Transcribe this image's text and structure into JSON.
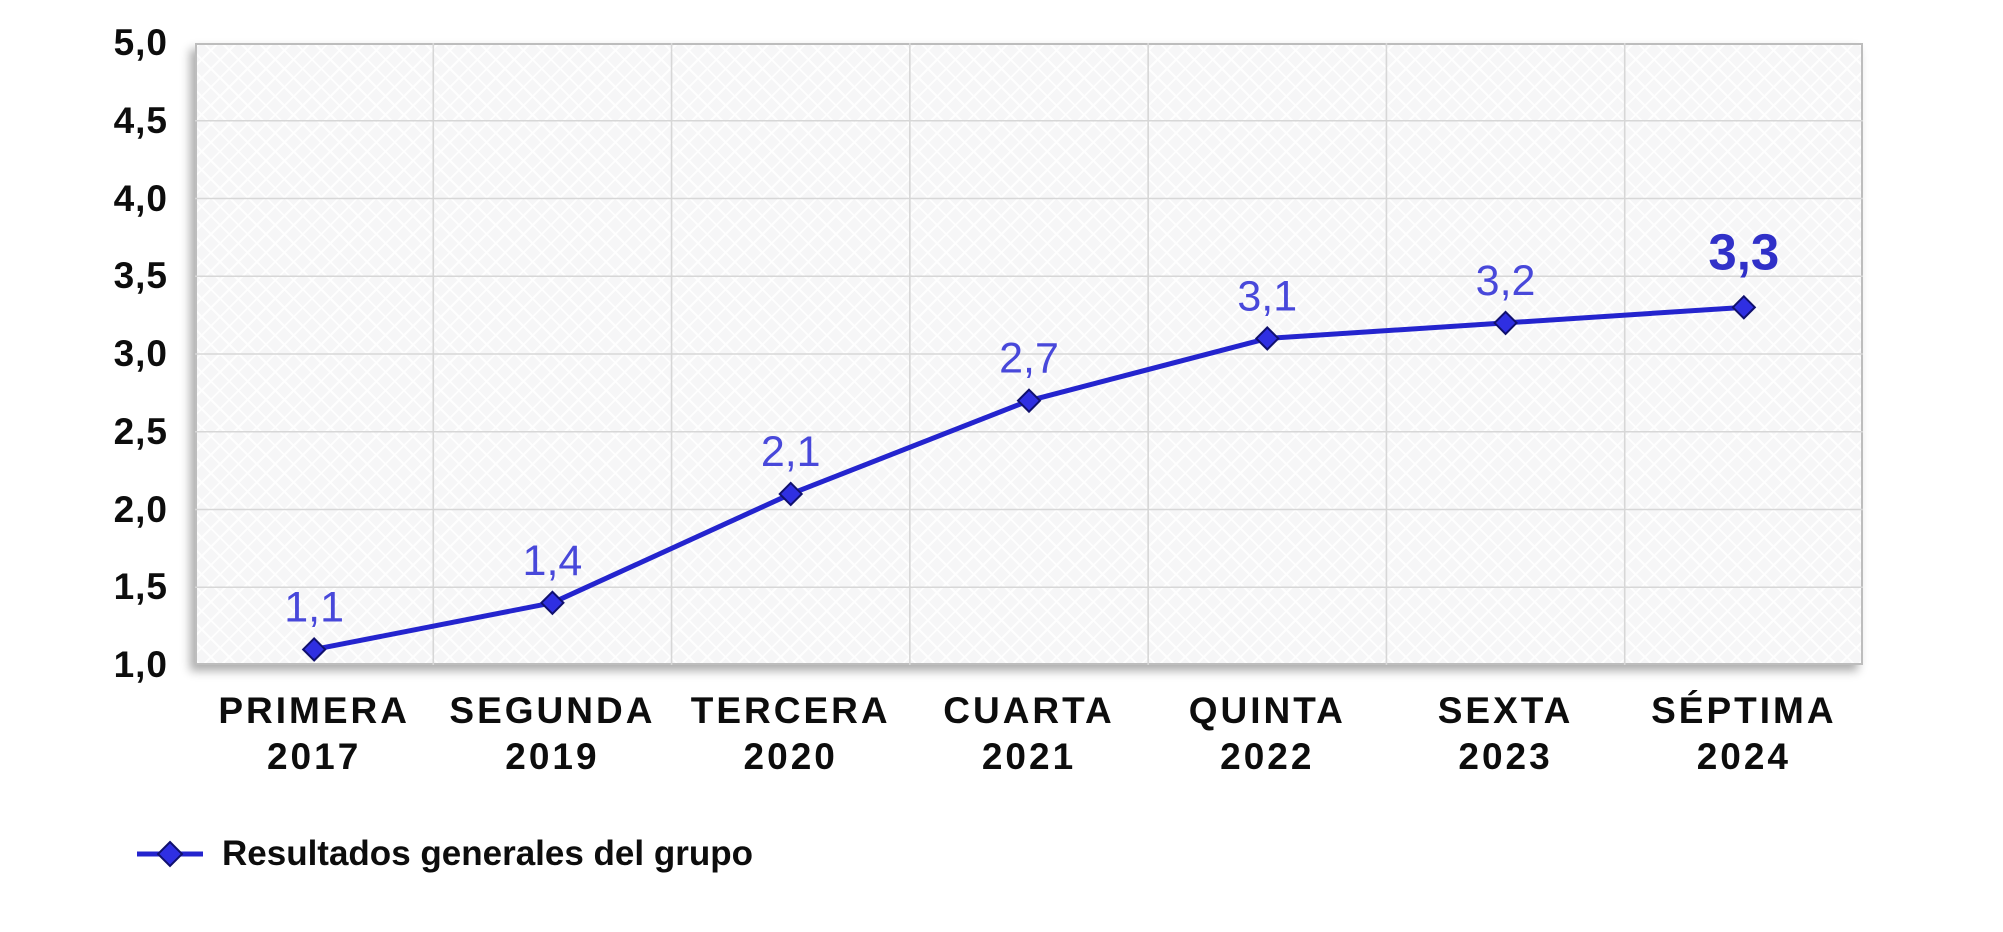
{
  "chart_data": {
    "type": "line",
    "title": "",
    "categories": [
      {
        "name": "PRIMERA",
        "year": "2017"
      },
      {
        "name": "SEGUNDA",
        "year": "2019"
      },
      {
        "name": "TERCERA",
        "year": "2020"
      },
      {
        "name": "CUARTA",
        "year": "2021"
      },
      {
        "name": "QUINTA",
        "year": "2022"
      },
      {
        "name": "SEXTA",
        "year": "2023"
      },
      {
        "name": "SÉPTIMA",
        "year": "2024"
      }
    ],
    "series": [
      {
        "name": "Resultados generales del grupo",
        "values": [
          1.1,
          1.4,
          2.1,
          2.7,
          3.1,
          3.2,
          3.3
        ],
        "point_labels": [
          "1,1",
          "1,4",
          "2,1",
          "2,7",
          "3,1",
          "3,2",
          "3,3"
        ],
        "last_point_emphasized": true
      }
    ],
    "ylim": [
      1.0,
      5.0
    ],
    "ytick_step": 0.5,
    "ytick_labels": [
      "5,0",
      "4,5",
      "4,0",
      "3,5",
      "3,0",
      "2,5",
      "2,0",
      "1,5",
      "1,0"
    ],
    "grid": true,
    "legend_position": "bottom-left",
    "colors": {
      "line": "#2424CE",
      "marker_fill": "#2F2FE2",
      "marker_stroke": "#10106E",
      "data_label": "#4848DA",
      "final_label": "#3030C8",
      "axis_text": "#0D0D0D",
      "gridline": "#D7D7D7",
      "plot_border": "#BDBDBD",
      "plot_background": "#F6F6F7"
    }
  }
}
